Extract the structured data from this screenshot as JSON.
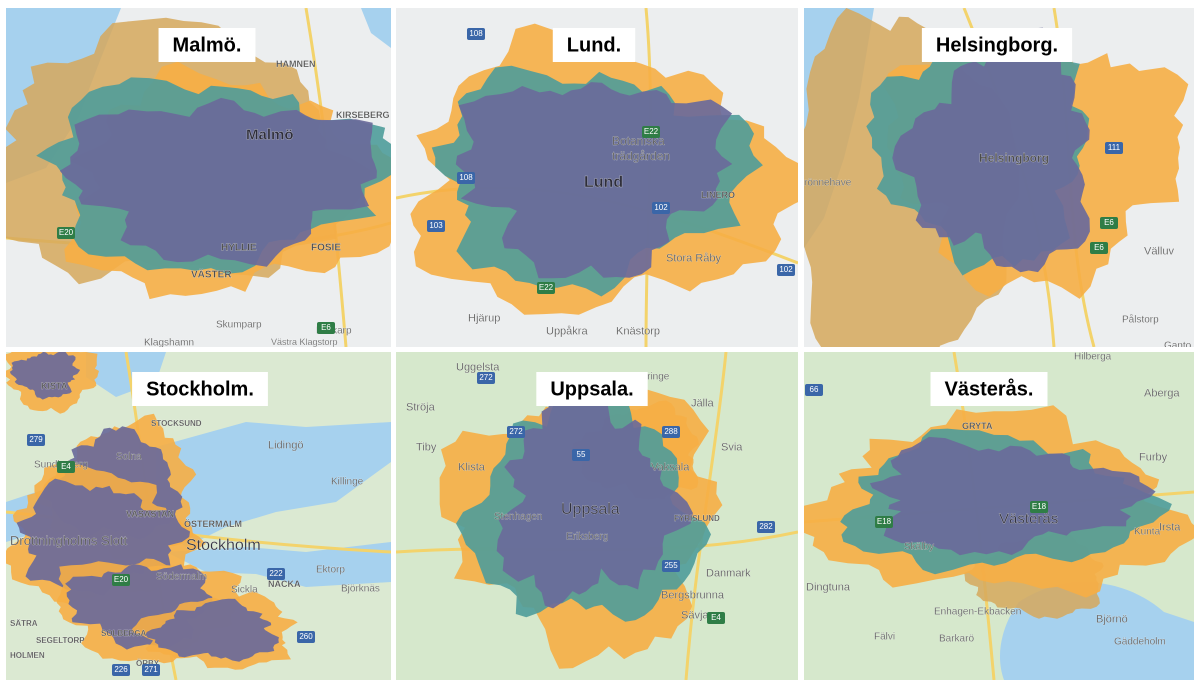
{
  "panels": [
    {
      "title": "Malmö.",
      "labels": [
        "Malmö",
        "KIRSEBERG",
        "HAMNEN",
        "HYLLIE",
        "VÄSTER",
        "FOSIE",
        "Klagshamn",
        "Skumparp",
        "Lockarp",
        "Västra Klagstorp"
      ],
      "roads": [
        "E20",
        "E6"
      ]
    },
    {
      "title": "Lund.",
      "labels": [
        "Botaniska",
        "trädgården",
        "Lund",
        "LINERO",
        "Stora Råby",
        "Hjärup",
        "Uppåkra",
        "Knästorp"
      ],
      "roads": [
        "108",
        "E22",
        "108",
        "103",
        "102",
        "102",
        "E22"
      ]
    },
    {
      "title": "Helsingborg.",
      "labels": [
        "Helsingborg",
        "rönnehave",
        "Välluv",
        "Pålstorp",
        "Ganto"
      ],
      "roads": [
        "111",
        "E6",
        "E6"
      ]
    },
    {
      "title": "Stockholm.",
      "labels": [
        "KISTA",
        "STOCKSUND",
        "Sundbyberg",
        "Solna",
        "Lidingö",
        "Killinge",
        "VASASTAN",
        "ÖSTERMALM",
        "Stockholm",
        "Drottningholms Slott",
        "Södermalm",
        "Sickla",
        "NACKA",
        "Ektorp",
        "Björknäs",
        "SÄTRA",
        "SEGELTORP",
        "SOLBERGA",
        "ÖRBY",
        "HOLMEN"
      ],
      "roads": [
        "279",
        "E4",
        "E20",
        "222",
        "260",
        "226",
        "271"
      ]
    },
    {
      "title": "Uppsala.",
      "labels": [
        "Uggelsta",
        "Hämringe",
        "Ströja",
        "Jälla",
        "Tiby",
        "Svia",
        "Klista",
        "Vaksala",
        "Uppsala",
        "Stenhagen",
        "FYRISLUND",
        "Eriksberg",
        "Danmark",
        "Bergsbrunna",
        "Sävja"
      ],
      "roads": [
        "272",
        "272",
        "288",
        "55",
        "282",
        "255",
        "E4"
      ]
    },
    {
      "title": "Västerås.",
      "labels": [
        "Hilberga",
        "Aberga",
        "GRYTA",
        "Furby",
        "Irsta",
        "Kunta",
        "Västerås",
        "Skälby",
        "Dingtuna",
        "Enhagen-Ekbacken",
        "Björnö",
        "Fälvi",
        "Barkarö",
        "Gäddeholm"
      ],
      "roads": [
        "66",
        "E18",
        "E18"
      ]
    }
  ]
}
